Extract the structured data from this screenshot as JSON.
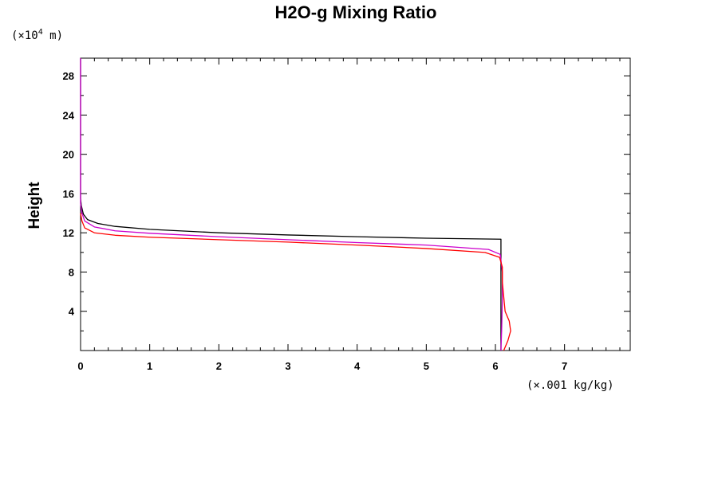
{
  "chart_data": {
    "type": "line",
    "title": "H2O-g Mixing Ratio",
    "ylabel": "Height",
    "xlabel": "",
    "x_unit": "(×.001 kg/kg)",
    "y_unit_prefix": "(×10",
    "y_unit_exp": "4",
    "y_unit_suffix": " m)",
    "xlim": [
      0,
      7.95
    ],
    "ylim": [
      0,
      29.8
    ],
    "x_ticks": [
      0,
      1,
      2,
      3,
      4,
      5,
      6,
      7
    ],
    "x_tick_labels": [
      "0",
      "1",
      "2",
      "3",
      "4",
      "5",
      "6",
      "7"
    ],
    "x_minor_step": 0.2,
    "y_ticks": [
      4,
      8,
      12,
      16,
      20,
      24,
      28
    ],
    "y_tick_labels": [
      "4",
      "8",
      "12",
      "16",
      "20",
      "24",
      "28"
    ],
    "y_minor_step": 2,
    "grid": false,
    "series": [
      {
        "color": "#000000",
        "points": [
          [
            6.08,
            0
          ],
          [
            6.08,
            11.35
          ],
          [
            5.0,
            11.45
          ],
          [
            4.0,
            11.6
          ],
          [
            3.0,
            11.78
          ],
          [
            2.0,
            12.0
          ],
          [
            1.0,
            12.35
          ],
          [
            0.5,
            12.65
          ],
          [
            0.25,
            12.95
          ],
          [
            0.1,
            13.35
          ],
          [
            0.04,
            13.9
          ],
          [
            0.01,
            14.8
          ],
          [
            0,
            15.5
          ],
          [
            0,
            29.8
          ]
        ]
      },
      {
        "color": "#cc00cc",
        "points": [
          [
            6.08,
            0
          ],
          [
            6.09,
            2
          ],
          [
            6.1,
            5
          ],
          [
            6.1,
            8
          ],
          [
            6.07,
            9.8
          ],
          [
            5.9,
            10.3
          ],
          [
            5.0,
            10.75
          ],
          [
            4.0,
            11.0
          ],
          [
            3.0,
            11.3
          ],
          [
            2.0,
            11.6
          ],
          [
            1.0,
            11.95
          ],
          [
            0.5,
            12.2
          ],
          [
            0.2,
            12.6
          ],
          [
            0.06,
            13.2
          ],
          [
            0.02,
            14.0
          ],
          [
            0,
            15.0
          ],
          [
            0,
            29.8
          ]
        ]
      },
      {
        "color": "#ff0000",
        "points": [
          [
            6.12,
            0
          ],
          [
            6.18,
            1
          ],
          [
            6.22,
            2
          ],
          [
            6.2,
            3
          ],
          [
            6.14,
            4
          ],
          [
            6.12,
            5.5
          ],
          [
            6.1,
            7
          ],
          [
            6.1,
            8.5
          ],
          [
            6.06,
            9.5
          ],
          [
            5.85,
            10.0
          ],
          [
            5.0,
            10.4
          ],
          [
            4.0,
            10.75
          ],
          [
            3.0,
            11.05
          ],
          [
            2.0,
            11.3
          ],
          [
            1.0,
            11.55
          ],
          [
            0.5,
            11.75
          ],
          [
            0.2,
            12.0
          ],
          [
            0.06,
            12.5
          ],
          [
            0.02,
            13.2
          ],
          [
            0,
            14.0
          ]
        ]
      }
    ]
  }
}
